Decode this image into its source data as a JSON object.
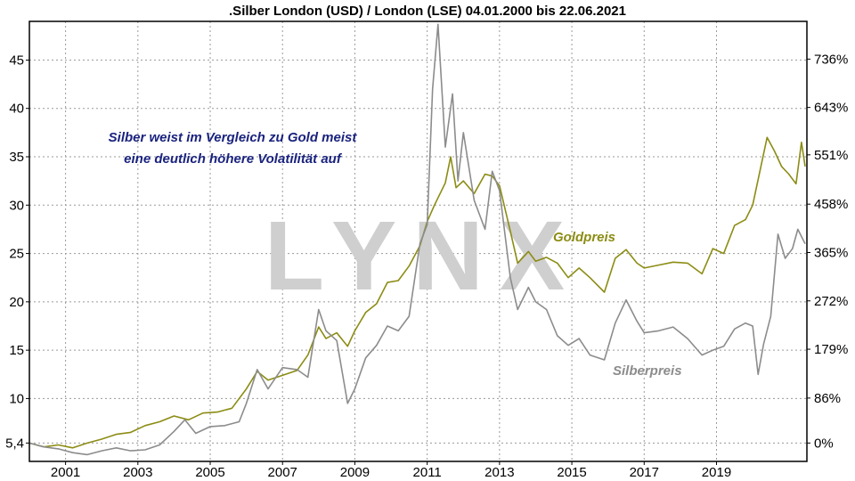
{
  "chart_data": {
    "type": "line",
    "title": ".Silber London (USD) / London (LSE) 04.01.2000 bis 22.06.2021",
    "watermark": "LYNX",
    "annotation_lines": [
      "Silber weist im Vergleich zu Gold meist",
      "eine deutlich höhere Volatilität auf"
    ],
    "xlim": [
      2000.0,
      2021.5
    ],
    "ylim": [
      3.5,
      49
    ],
    "x_ticks": [
      2001,
      2003,
      2005,
      2007,
      2009,
      2011,
      2013,
      2015,
      2017,
      2019
    ],
    "x_tick_labels": [
      "2001",
      "2003",
      "2005",
      "2007",
      "2009",
      "2011",
      "2013",
      "2015",
      "2017",
      "2019"
    ],
    "y_ticks_left": [
      5.4,
      10,
      15,
      20,
      25,
      30,
      35,
      40,
      45
    ],
    "y_tick_labels_left": [
      "5,4",
      "10",
      "15",
      "20",
      "25",
      "30",
      "35",
      "40",
      "45"
    ],
    "y_ticks_right_at": [
      5.4,
      10.05,
      15.1,
      20.1,
      25.1,
      30.1,
      35.2,
      40.1,
      45.1
    ],
    "y_tick_labels_right": [
      "0%",
      "86%",
      "179%",
      "272%",
      "365%",
      "458%",
      "551%",
      "643%",
      "736%"
    ],
    "grid": true,
    "series": [
      {
        "name": "Goldpreis",
        "color": "#8c8c14",
        "x": [
          2000.0,
          2000.4,
          2000.8,
          2001.2,
          2001.6,
          2002.0,
          2002.4,
          2002.8,
          2003.2,
          2003.6,
          2004.0,
          2004.4,
          2004.8,
          2005.2,
          2005.6,
          2006.0,
          2006.3,
          2006.6,
          2007.0,
          2007.4,
          2007.7,
          2008.0,
          2008.2,
          2008.5,
          2008.8,
          2009.0,
          2009.3,
          2009.6,
          2009.9,
          2010.2,
          2010.5,
          2010.8,
          2011.0,
          2011.2,
          2011.5,
          2011.65,
          2011.8,
          2012.0,
          2012.3,
          2012.6,
          2012.8,
          2013.0,
          2013.3,
          2013.5,
          2013.8,
          2014.0,
          2014.3,
          2014.6,
          2014.9,
          2015.2,
          2015.5,
          2015.9,
          2016.2,
          2016.5,
          2016.8,
          2017.0,
          2017.4,
          2017.8,
          2018.2,
          2018.6,
          2018.9,
          2019.2,
          2019.5,
          2019.8,
          2020.0,
          2020.2,
          2020.4,
          2020.6,
          2020.8,
          2021.0,
          2021.2,
          2021.35,
          2021.45
        ],
        "values": [
          5.4,
          5.0,
          5.2,
          4.9,
          5.4,
          5.8,
          6.3,
          6.5,
          7.2,
          7.6,
          8.2,
          7.8,
          8.5,
          8.6,
          9.0,
          11.0,
          12.8,
          11.9,
          12.4,
          12.9,
          14.5,
          17.4,
          16.2,
          16.8,
          15.4,
          17.0,
          18.9,
          19.8,
          22.0,
          22.2,
          23.7,
          25.8,
          28.3,
          30.0,
          32.3,
          35.0,
          31.8,
          32.5,
          31.2,
          33.2,
          33.0,
          32.0,
          27.3,
          24.0,
          25.2,
          24.2,
          24.6,
          24.0,
          22.5,
          23.5,
          22.5,
          21.0,
          24.5,
          25.4,
          24.0,
          23.5,
          23.8,
          24.1,
          24.0,
          22.9,
          25.5,
          25.0,
          27.9,
          28.5,
          30.0,
          33.5,
          37.0,
          35.6,
          34.0,
          33.2,
          32.2,
          36.5,
          34.0
        ]
      },
      {
        "name": "Silberpreis",
        "color": "#8c8c8c",
        "x": [
          2000.0,
          2000.4,
          2000.8,
          2001.2,
          2001.6,
          2002.0,
          2002.4,
          2002.8,
          2003.2,
          2003.6,
          2004.0,
          2004.3,
          2004.6,
          2005.0,
          2005.4,
          2005.8,
          2006.0,
          2006.3,
          2006.6,
          2007.0,
          2007.4,
          2007.7,
          2008.0,
          2008.2,
          2008.5,
          2008.8,
          2009.0,
          2009.3,
          2009.6,
          2009.9,
          2010.2,
          2010.5,
          2010.8,
          2011.0,
          2011.15,
          2011.3,
          2011.5,
          2011.7,
          2011.85,
          2012.0,
          2012.3,
          2012.6,
          2012.8,
          2013.0,
          2013.3,
          2013.5,
          2013.8,
          2014.0,
          2014.3,
          2014.6,
          2014.9,
          2015.2,
          2015.5,
          2015.9,
          2016.2,
          2016.5,
          2016.8,
          2017.0,
          2017.4,
          2017.8,
          2018.2,
          2018.6,
          2018.9,
          2019.2,
          2019.5,
          2019.8,
          2020.0,
          2020.15,
          2020.3,
          2020.5,
          2020.7,
          2020.9,
          2021.1,
          2021.25,
          2021.45
        ],
        "values": [
          5.4,
          5.0,
          4.8,
          4.4,
          4.2,
          4.6,
          4.9,
          4.6,
          4.7,
          5.2,
          6.6,
          7.8,
          6.4,
          7.1,
          7.2,
          7.6,
          9.5,
          13.0,
          11.0,
          13.2,
          13.0,
          12.2,
          19.2,
          17.0,
          16.0,
          9.5,
          11.0,
          14.2,
          15.5,
          17.5,
          17.0,
          18.5,
          26.0,
          28.0,
          42.0,
          48.7,
          36.0,
          41.5,
          32.5,
          37.5,
          30.5,
          27.5,
          33.5,
          31.5,
          22.5,
          19.2,
          21.5,
          20.0,
          19.2,
          16.5,
          15.5,
          16.2,
          14.5,
          14.0,
          17.8,
          20.2,
          18.0,
          16.8,
          17.0,
          17.4,
          16.2,
          14.5,
          15.0,
          15.4,
          17.2,
          17.8,
          17.5,
          12.5,
          15.6,
          18.5,
          27.0,
          24.5,
          25.5,
          27.5,
          26.0
        ]
      }
    ],
    "legend": {
      "gold_label": "Goldpreis",
      "silver_label": "Silberpreis",
      "gold_color": "#8c8c14",
      "silver_color": "#8c8c8c"
    },
    "annotation_color": "#1a237e"
  }
}
